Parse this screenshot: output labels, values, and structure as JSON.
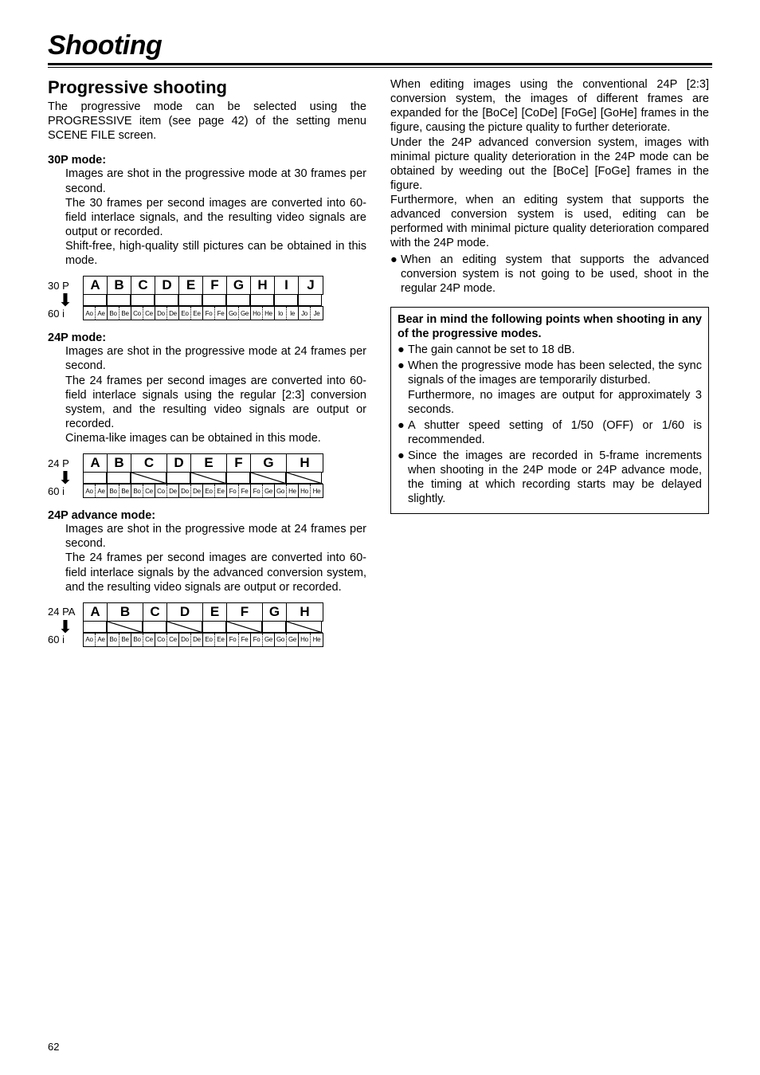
{
  "title": "Shooting",
  "pageNumber": "62",
  "left": {
    "sectionHeading": "Progressive shooting",
    "intro": "The progressive mode can be selected using the PROGRESSIVE item (see page 42) of the setting menu SCENE FILE screen.",
    "p30": {
      "subhead": "30P mode:",
      "para1": "Images are shot in the progressive mode at 30 frames per second.",
      "para2": "The 30 frames per second images are converted into 60-field interlace signals, and the resulting video signals are output or recorded.",
      "para3": "Shift-free, high-quality still pictures can be obtained in this mode."
    },
    "p24": {
      "subhead": "24P mode:",
      "para1": "Images are shot in the progressive mode at 24 frames per second.",
      "para2": "The 24 frames per second images are converted into 60-field interlace signals using the regular [2:3] conversion system, and the resulting video signals are output or recorded.",
      "para3": "Cinema-like images can be obtained in this mode."
    },
    "p24a": {
      "subhead": "24P advance mode:",
      "para1": "Images are shot in the progressive mode at 24 frames per second.",
      "para2": "The 24 frames per second images are converted into 60-field interlace signals by the advanced conversion system, and the resulting video signals are output or recorded."
    }
  },
  "right": {
    "para1": "When editing images using the conventional 24P [2:3] conversion system, the images of different frames are expanded for the [BoCe] [CoDe] [FoGe] [GoHe] frames in the figure, causing the picture quality to further deteriorate.",
    "para2": "Under the 24P advanced conversion system, images with minimal picture quality deterioration in the 24P mode can be obtained by weeding out the [BoCe] [FoGe] frames in the figure.",
    "para3": "Furthermore, when an editing system that supports the advanced conversion system is used, editing can be performed with minimal picture quality deterioration compared with the 24P mode.",
    "bullet1": "When an editing system that supports the advanced conversion system is not going to be used, shoot in the regular 24P mode.",
    "box": {
      "heading": "Bear in mind the following points when shooting in any of the progressive modes.",
      "b1": "The gain cannot be set to 18 dB.",
      "b2a": "When the progressive mode has been selected, the sync signals of the images are temporarily disturbed.",
      "b2b": "Furthermore, no images are output for approximately 3 seconds.",
      "b3": "A shutter speed setting of 1/50 (OFF) or 1/60 is recommended.",
      "b4": "Since the images are recorded in 5-frame increments when shooting in the 24P mode or 24P advance mode, the timing at which recording starts may be delayed slightly."
    }
  },
  "diag30": {
    "labelTop": "30 P",
    "labelBot": "60 i",
    "topWidth": 30,
    "topLetters": [
      "A",
      "B",
      "C",
      "D",
      "E",
      "F",
      "G",
      "H",
      "I",
      "J"
    ],
    "midCount": 10,
    "smWidth": 15,
    "botPairs": [
      [
        "Ao",
        "Ae"
      ],
      [
        "Bo",
        "Be"
      ],
      [
        "Co",
        "Ce"
      ],
      [
        "Do",
        "De"
      ],
      [
        "Eo",
        "Ee"
      ],
      [
        "Fo",
        "Fe"
      ],
      [
        "Go",
        "Ge"
      ],
      [
        "Ho",
        "He"
      ],
      [
        "Io",
        "Ie"
      ],
      [
        "Jo",
        "Je"
      ]
    ]
  },
  "diag24": {
    "labelTop": "24 P",
    "labelBot": "60 i",
    "topWidths": [
      30,
      30,
      45,
      30,
      45,
      30,
      45,
      45
    ],
    "topLetters": [
      "A",
      "B",
      "C",
      "D",
      "E",
      "F",
      "G",
      "H"
    ],
    "midWidths": [
      30,
      30,
      45,
      30,
      45,
      30,
      45,
      45
    ],
    "midSlantIdx": [
      2,
      4,
      6,
      7
    ],
    "smWidth": 15,
    "botPairsFlat": [
      "Ao",
      "Ae",
      "Bo",
      "Be",
      "Bo",
      "Ce",
      "Co",
      "De",
      "Do",
      "De",
      "Eo",
      "Ee",
      "Fo",
      "Fe",
      "Fo",
      "Ge",
      "Go",
      "He",
      "Ho",
      "He"
    ],
    "botSolidRightIdx": [
      1,
      3,
      5,
      7,
      9,
      11,
      13,
      15,
      17
    ]
  },
  "diag24a": {
    "labelTop": "24 PA",
    "labelBot": "60 i",
    "topWidths": [
      30,
      45,
      30,
      45,
      30,
      45,
      30,
      45
    ],
    "topLetters": [
      "A",
      "B",
      "C",
      "D",
      "E",
      "F",
      "G",
      "H"
    ],
    "midWidths": [
      30,
      45,
      30,
      45,
      30,
      45,
      30,
      45
    ],
    "midSlantIdx": [
      1,
      3,
      5,
      7
    ],
    "smWidth": 15,
    "botPairsFlat": [
      "Ao",
      "Ae",
      "Bo",
      "Be",
      "Bo",
      "Ce",
      "Co",
      "Ce",
      "Do",
      "De",
      "Eo",
      "Ee",
      "Fo",
      "Fe",
      "Fo",
      "Ge",
      "Go",
      "Ge",
      "Ho",
      "He"
    ],
    "botSolidRightIdx": [
      1,
      3,
      5,
      7,
      9,
      11,
      13,
      15,
      17
    ]
  }
}
